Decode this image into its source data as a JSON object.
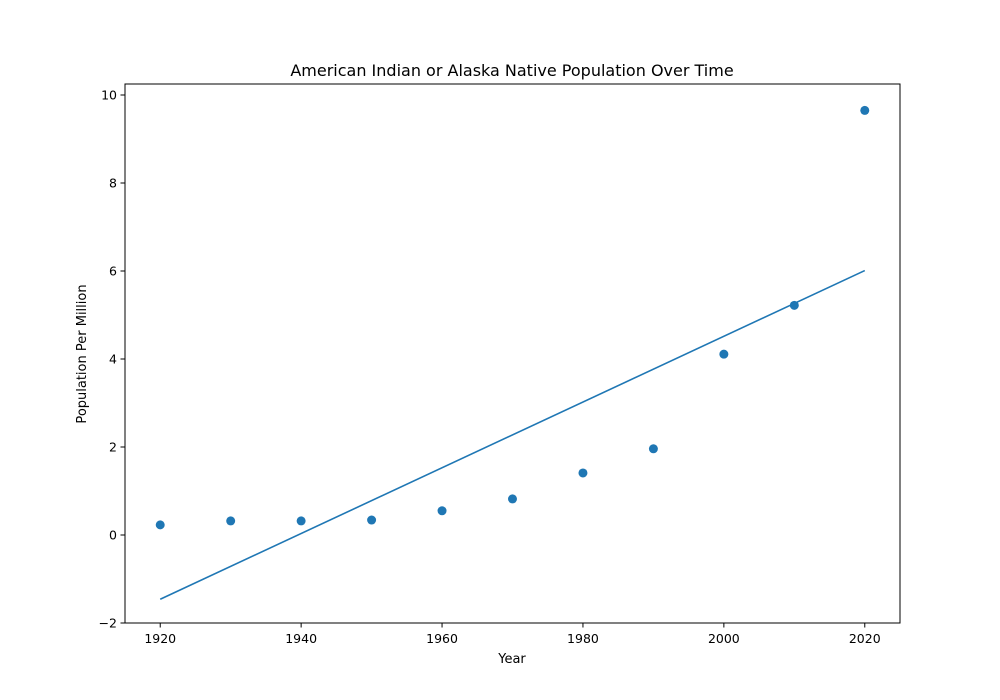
{
  "chart_data": {
    "type": "scatter",
    "title": "American Indian or Alaska Native Population Over Time",
    "xlabel": "Year",
    "ylabel": "Population Per Million",
    "xlim": [
      1915,
      2025
    ],
    "ylim": [
      -2,
      10.25
    ],
    "x_ticks": [
      1920,
      1940,
      1960,
      1980,
      2000,
      2020
    ],
    "y_ticks": [
      -2,
      0,
      2,
      4,
      6,
      8,
      10
    ],
    "grid": false,
    "legend": "none",
    "color": "#1f77b4",
    "series": [
      {
        "type": "scatter",
        "x": [
          1920,
          1930,
          1940,
          1950,
          1960,
          1970,
          1980,
          1990,
          2000,
          2010,
          2020
        ],
        "y": [
          0.23,
          0.32,
          0.32,
          0.34,
          0.55,
          0.82,
          1.41,
          1.96,
          4.11,
          5.22,
          9.65
        ]
      },
      {
        "type": "line",
        "x": [
          1920,
          2020
        ],
        "y": [
          -1.46,
          6.01
        ]
      }
    ]
  }
}
